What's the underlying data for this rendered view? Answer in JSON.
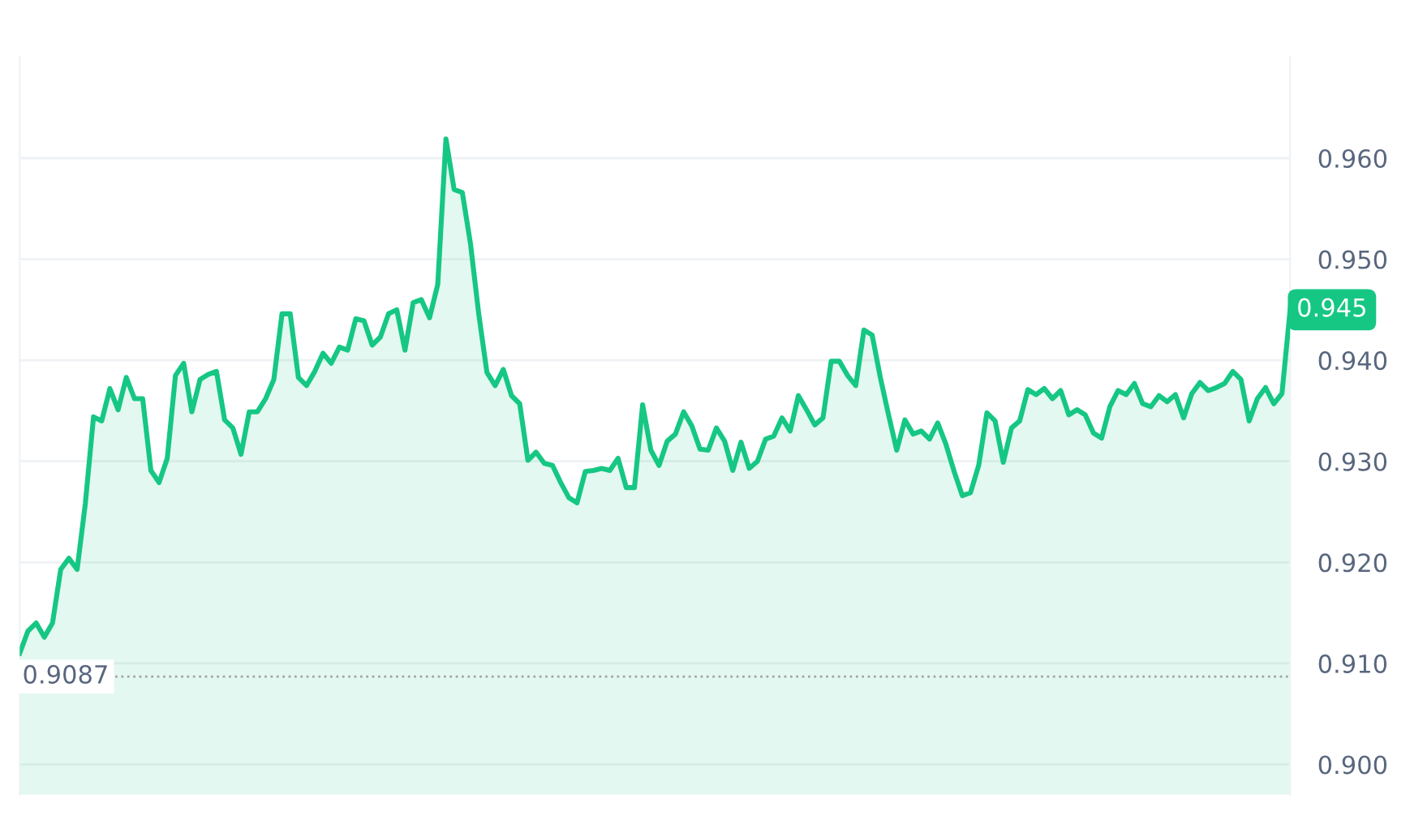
{
  "chart_data": {
    "type": "area",
    "categories": [
      null,
      null,
      null,
      null,
      null,
      null,
      null,
      null,
      null,
      null,
      null,
      null,
      null,
      null,
      null,
      null,
      null,
      null,
      null,
      null,
      null,
      null,
      null,
      null,
      null,
      null,
      null,
      null,
      null,
      null,
      null,
      null,
      null,
      null,
      null,
      null,
      null,
      null,
      null,
      null,
      null,
      null,
      null,
      null,
      null,
      null,
      null,
      null,
      null,
      null,
      null,
      null,
      null,
      null,
      null,
      null,
      null,
      null,
      null,
      null,
      null,
      null,
      null,
      null,
      null,
      null,
      null,
      null,
      null,
      null,
      null,
      null,
      null,
      null,
      null,
      null,
      null,
      null,
      null,
      null,
      null,
      null,
      null,
      null,
      null,
      null,
      null,
      null,
      null,
      null,
      null,
      null,
      null,
      null,
      null,
      null,
      null,
      null,
      null,
      null,
      null,
      null,
      null,
      null,
      null,
      null,
      null,
      null,
      null,
      null,
      null,
      null,
      null,
      null,
      null,
      null,
      null,
      null,
      null,
      null,
      null,
      null,
      null,
      null,
      null,
      null,
      null,
      null,
      null,
      null,
      null,
      null,
      null,
      null,
      null,
      null,
      null,
      null,
      null,
      null,
      null,
      null,
      null,
      null,
      null,
      null,
      null,
      null,
      null,
      null,
      null,
      null,
      null,
      null,
      null,
      null
    ],
    "series": [
      {
        "color": "#16c784",
        "values": [
          0.911,
          0.9132,
          0.914,
          0.9126,
          0.914,
          0.9193,
          0.9204,
          0.9193,
          0.9258,
          0.9344,
          0.934,
          0.9372,
          0.9351,
          0.9383,
          0.9362,
          0.9362,
          0.9291,
          0.9279,
          0.9303,
          0.9385,
          0.9397,
          0.9349,
          0.9381,
          0.9386,
          0.9389,
          0.9341,
          0.9333,
          0.9307,
          0.9349,
          0.9349,
          0.9362,
          0.9381,
          0.9446,
          0.9446,
          0.9383,
          0.9375,
          0.9389,
          0.9407,
          0.9397,
          0.9413,
          0.941,
          0.9441,
          0.9439,
          0.9415,
          0.9423,
          0.9446,
          0.945,
          0.941,
          0.9457,
          0.946,
          0.9442,
          0.9475,
          0.9619,
          0.9569,
          0.9566,
          0.9515,
          0.9446,
          0.9388,
          0.9375,
          0.9391,
          0.9365,
          0.9357,
          0.9301,
          0.9309,
          0.9298,
          0.9296,
          0.9279,
          0.9264,
          0.9259,
          0.929,
          0.9291,
          0.9293,
          0.9291,
          0.9303,
          0.9274,
          0.9274,
          0.9356,
          0.9311,
          0.9296,
          0.932,
          0.9327,
          0.9349,
          0.9335,
          0.9312,
          0.9311,
          0.9333,
          0.932,
          0.9291,
          0.9319,
          0.9293,
          0.93,
          0.9322,
          0.9325,
          0.9343,
          0.933,
          0.9365,
          0.9351,
          0.9336,
          0.9343,
          0.9399,
          0.9399,
          0.9385,
          0.9375,
          0.943,
          0.9425,
          0.9383,
          0.9346,
          0.9311,
          0.9341,
          0.9327,
          0.933,
          0.9322,
          0.9338,
          0.9317,
          0.929,
          0.9266,
          0.9269,
          0.9296,
          0.9348,
          0.934,
          0.9299,
          0.9333,
          0.934,
          0.9371,
          0.9366,
          0.9372,
          0.9362,
          0.937,
          0.9346,
          0.9351,
          0.9346,
          0.9328,
          0.9323,
          0.9354,
          0.937,
          0.9366,
          0.9377,
          0.9357,
          0.9354,
          0.9365,
          0.9359,
          0.9366,
          0.9343,
          0.9367,
          0.9378,
          0.937,
          0.9373,
          0.9377,
          0.9389,
          0.9381,
          0.934,
          0.9362,
          0.9373,
          0.9357,
          0.9367,
          0.945
        ]
      }
    ],
    "ylim": [
      0.897,
      0.97
    ],
    "yticks": [
      {
        "value": 0.9,
        "label": "0.900"
      },
      {
        "value": 0.91,
        "label": "0.910"
      },
      {
        "value": 0.92,
        "label": "0.920"
      },
      {
        "value": 0.93,
        "label": "0.930"
      },
      {
        "value": 0.94,
        "label": "0.940"
      },
      {
        "value": 0.95,
        "label": "0.950"
      },
      {
        "value": 0.96,
        "label": "0.960"
      }
    ],
    "grid": "y",
    "line_style": "solid",
    "tick_labels": "y",
    "ref_lines": [
      {
        "axis": "y",
        "value": 0.9087,
        "label": "0.9087",
        "line_style": "dotted",
        "color": "#a0a4ab"
      }
    ],
    "annotations": [
      "0.945"
    ]
  }
}
